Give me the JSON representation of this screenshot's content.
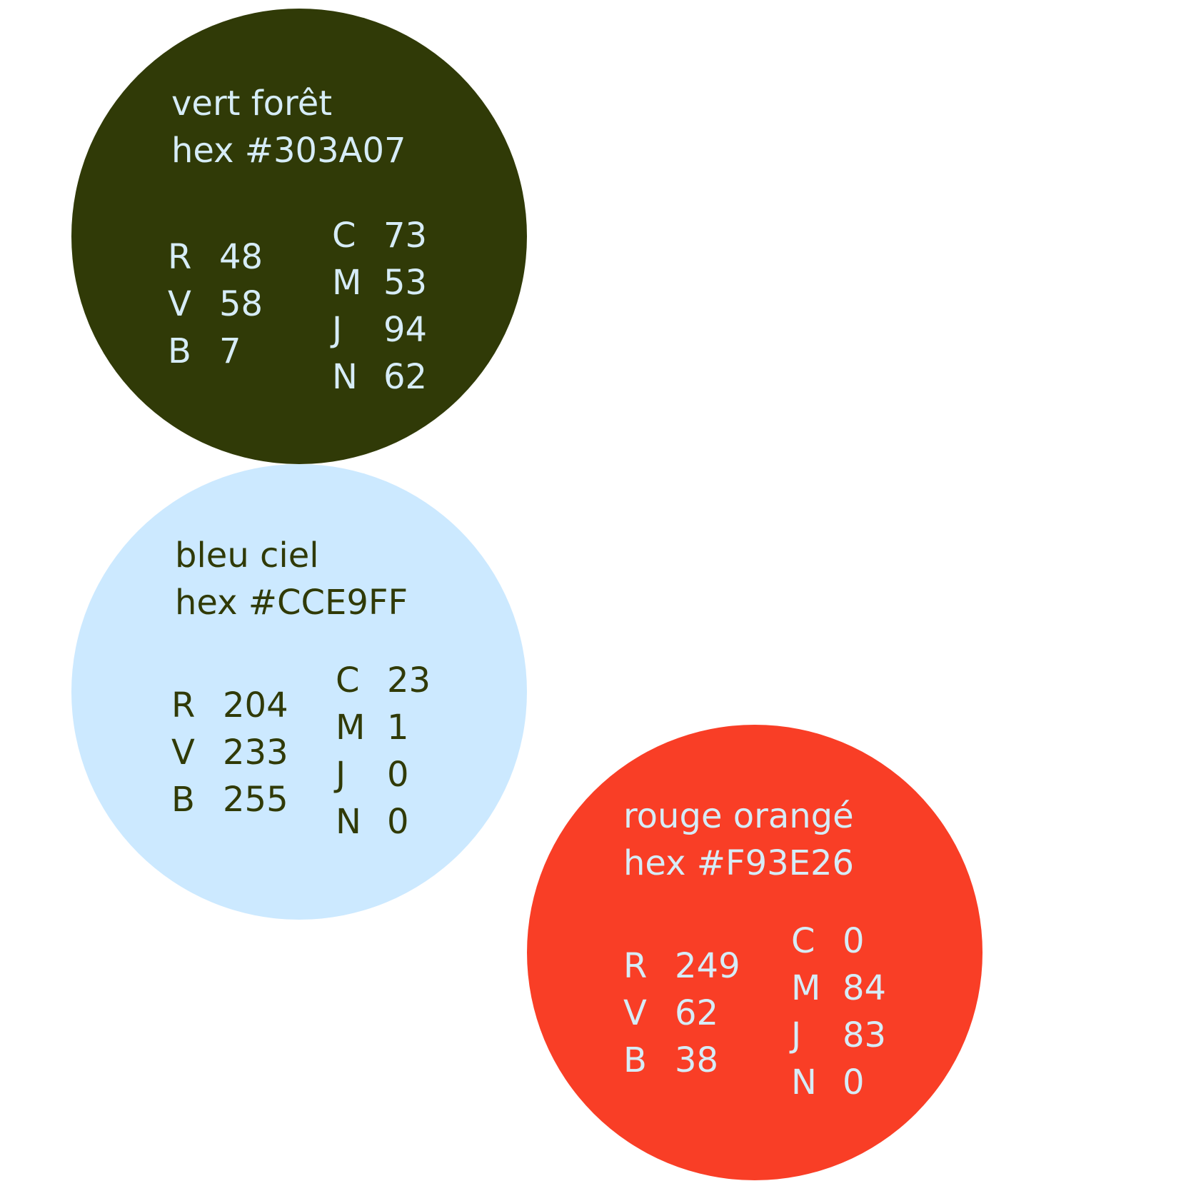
{
  "swatches": [
    {
      "name": "vert forêt",
      "hex": "hex #303A07",
      "bg": "#303A07",
      "text_color": "#D6ECF7",
      "rgb": [
        {
          "k": "R",
          "v": "48"
        },
        {
          "k": "V",
          "v": "58"
        },
        {
          "k": "B",
          "v": "7"
        }
      ],
      "cmyk": [
        {
          "k": "C",
          "v": "73"
        },
        {
          "k": "M",
          "v": "53"
        },
        {
          "k": "J",
          "v": "94"
        },
        {
          "k": "N",
          "v": "62"
        }
      ]
    },
    {
      "name": "bleu ciel",
      "hex": "hex #CCE9FF",
      "bg": "#CCE9FF",
      "text_color": "#303A07",
      "rgb": [
        {
          "k": "R",
          "v": "204"
        },
        {
          "k": "V",
          "v": "233"
        },
        {
          "k": "B",
          "v": "255"
        }
      ],
      "cmyk": [
        {
          "k": "C",
          "v": "23"
        },
        {
          "k": "M",
          "v": "1"
        },
        {
          "k": "J",
          "v": "0"
        },
        {
          "k": "N",
          "v": "0"
        }
      ]
    },
    {
      "name": "rouge orangé",
      "hex": "hex #F93E26",
      "bg": "#F93E26",
      "text_color": "#D6ECF7",
      "rgb": [
        {
          "k": "R",
          "v": "249"
        },
        {
          "k": "V",
          "v": "62"
        },
        {
          "k": "B",
          "v": "38"
        }
      ],
      "cmyk": [
        {
          "k": "C",
          "v": "0"
        },
        {
          "k": "M",
          "v": "84"
        },
        {
          "k": "J",
          "v": "83"
        },
        {
          "k": "N",
          "v": "0"
        }
      ]
    }
  ]
}
